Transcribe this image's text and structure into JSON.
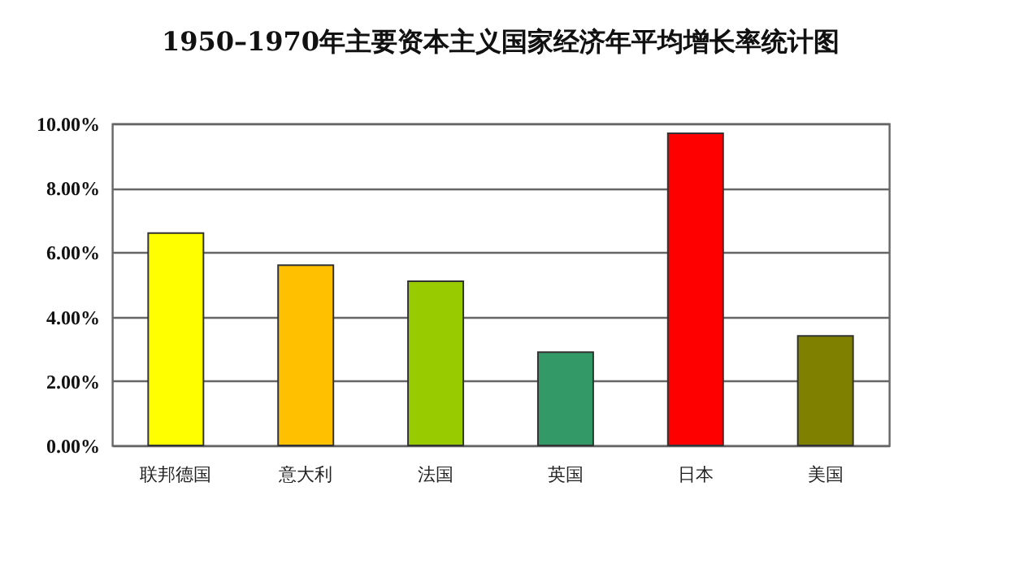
{
  "chart_data": {
    "type": "bar",
    "title": "1950–1970年主要资本主义国家经济年平均增长率统计图",
    "categories": [
      "联邦德国",
      "意大利",
      "法国",
      "英国",
      "日本",
      "美国"
    ],
    "values": [
      6.6,
      5.6,
      5.1,
      2.9,
      9.7,
      3.4
    ],
    "colors": [
      "#ffff00",
      "#ffc000",
      "#99cc00",
      "#339966",
      "#ff0000",
      "#808000"
    ],
    "ylim": [
      0,
      10
    ],
    "yticks": [
      {
        "value": 0,
        "label": "0.00%"
      },
      {
        "value": 2,
        "label": "2.00%"
      },
      {
        "value": 4,
        "label": "4.00%"
      },
      {
        "value": 6,
        "label": "6.00%"
      },
      {
        "value": 8,
        "label": "8.00%"
      },
      {
        "value": 10,
        "label": "10.00%"
      }
    ],
    "grid": "y"
  }
}
